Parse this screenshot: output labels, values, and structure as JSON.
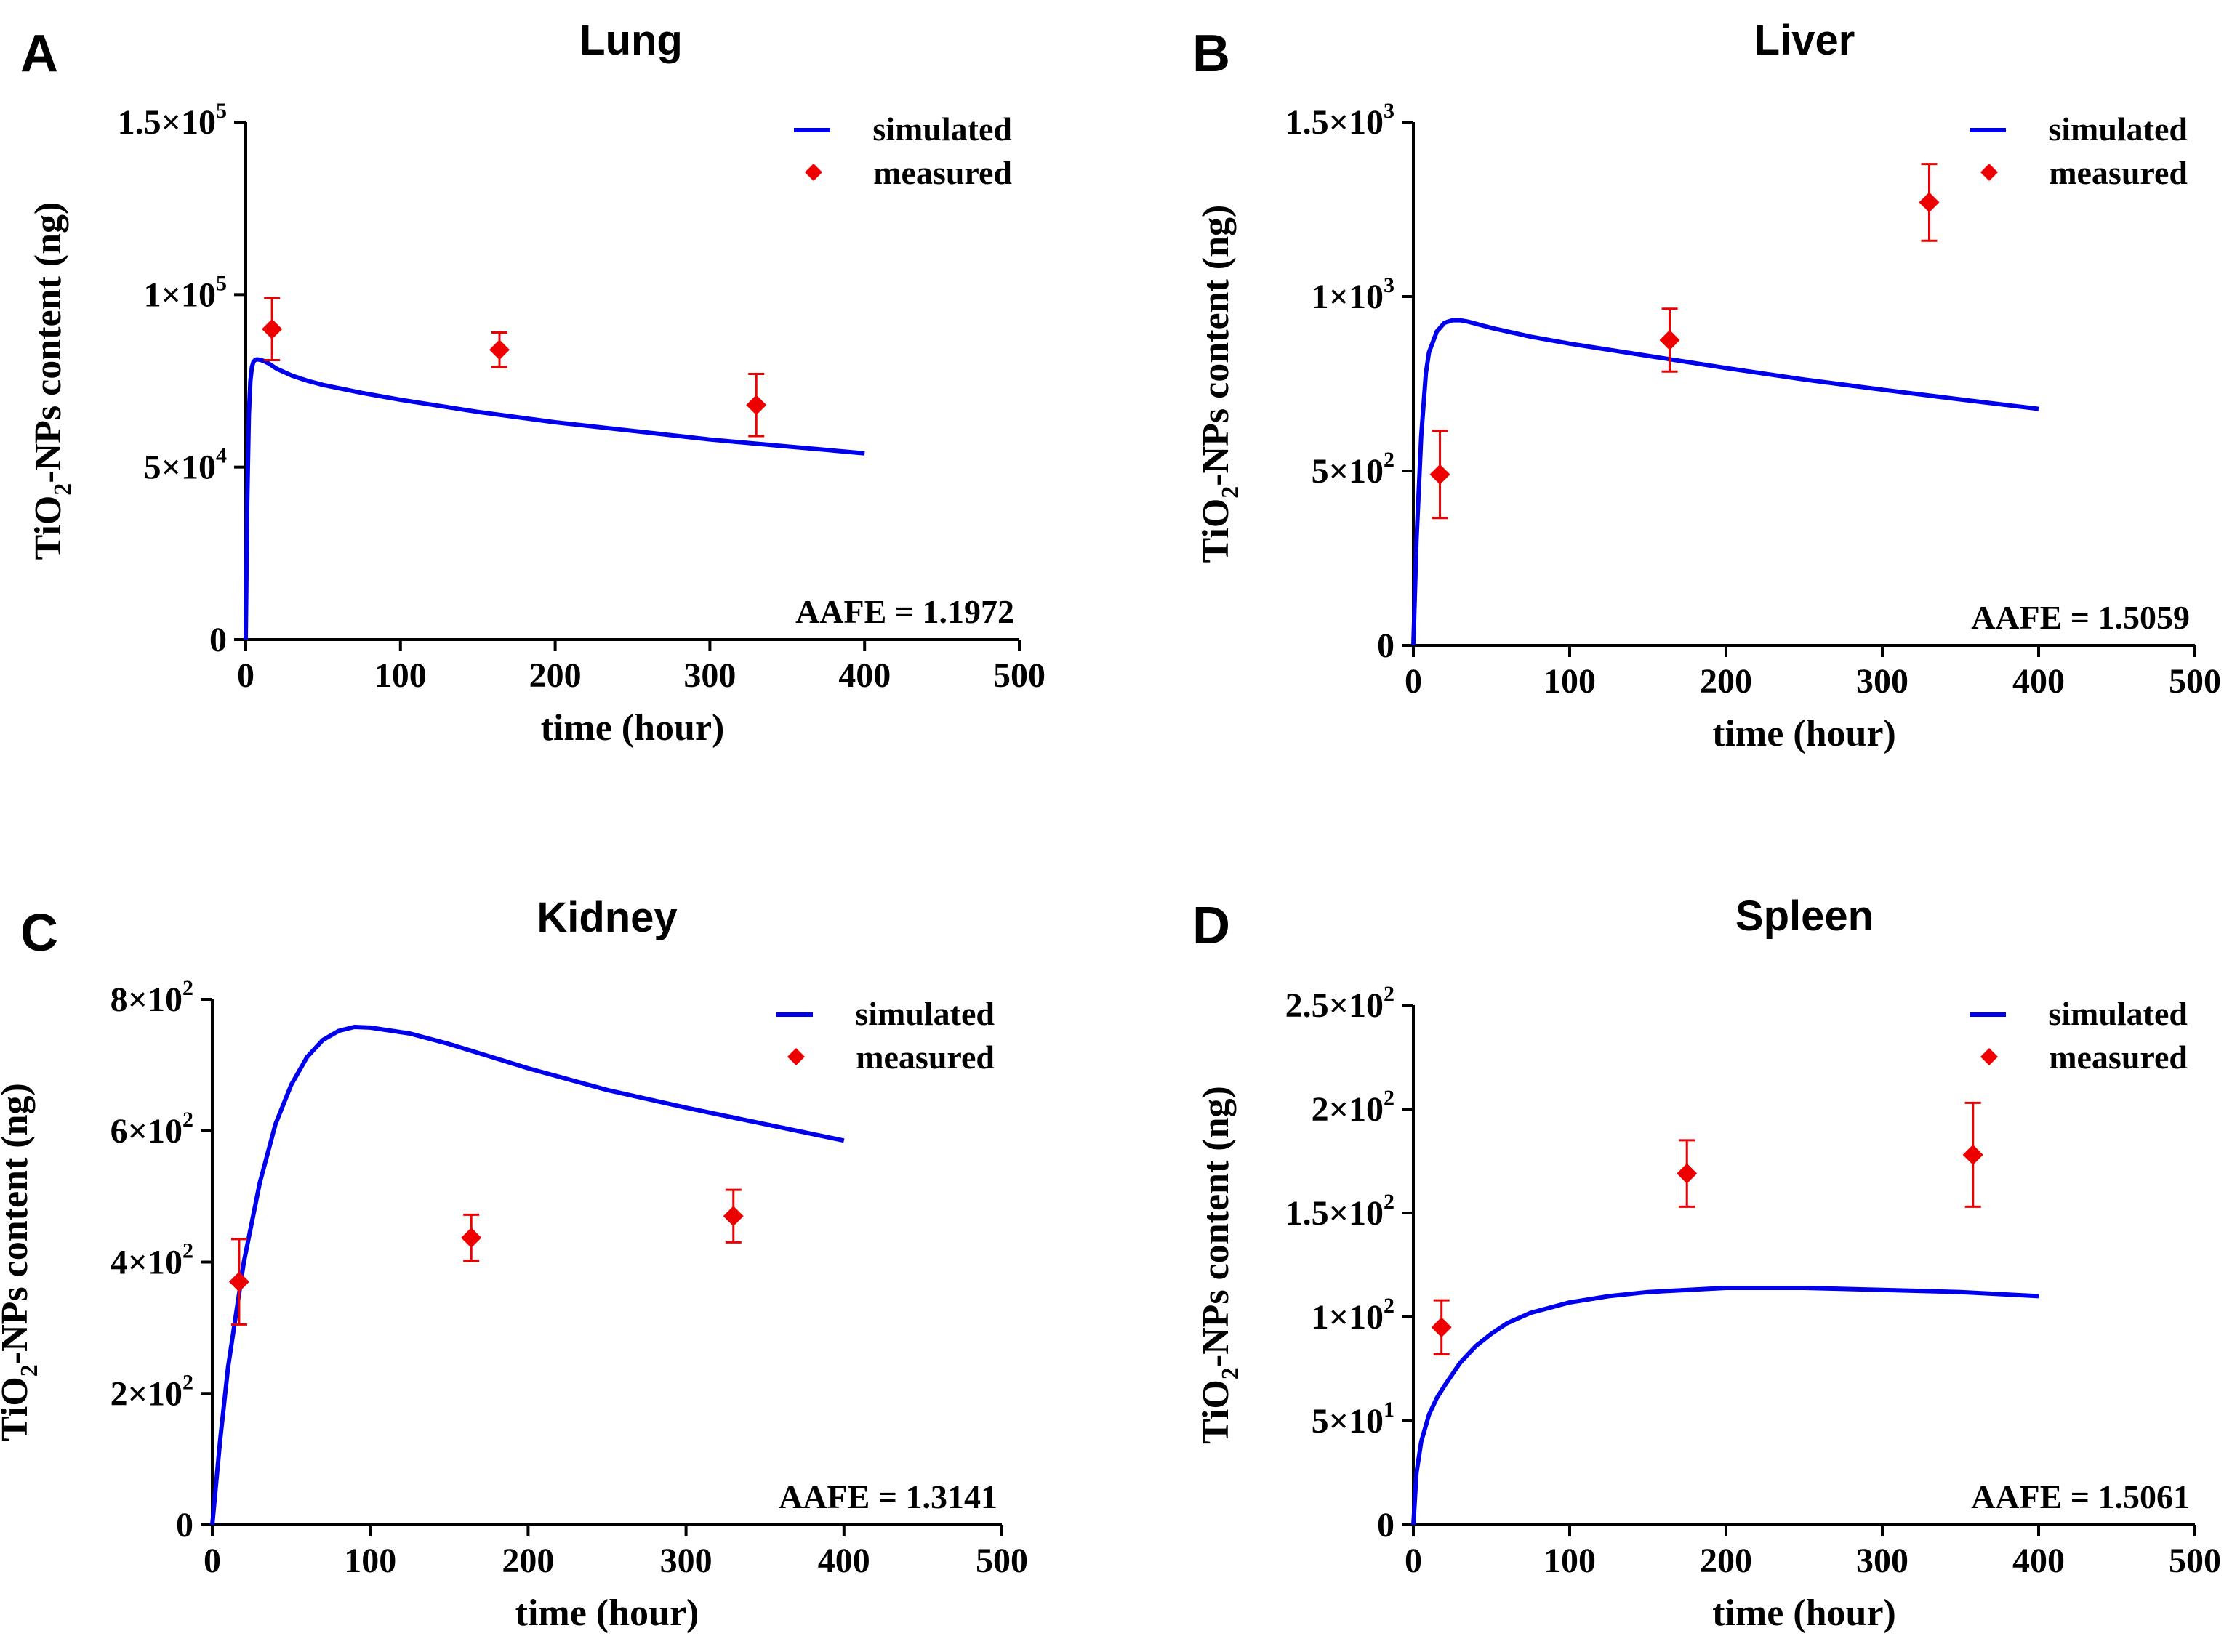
{
  "chart_data": [
    {
      "type": "line",
      "letter": "A",
      "title": "Lung",
      "xlabel": "time (hour)",
      "ylabel": "TiO2-NPs content (ng)",
      "xlim": [
        0,
        500
      ],
      "ylim": [
        0,
        150000
      ],
      "xticks": [
        0,
        100,
        200,
        300,
        400,
        500
      ],
      "yticks": [
        {
          "value": 0,
          "label": "0"
        },
        {
          "value": 50000,
          "mant": "5×10",
          "exp": "4"
        },
        {
          "value": 100000,
          "mant": "1×10",
          "exp": "5"
        },
        {
          "value": 150000,
          "mant": "1.5×10",
          "exp": "5"
        }
      ],
      "legend": [
        "simulated",
        "measured"
      ],
      "legend_position": "top-right",
      "annotation": "AAFE = 1.1972",
      "simulated": {
        "x": [
          0,
          1,
          2,
          3,
          4,
          5,
          6,
          7,
          8,
          10,
          12,
          15,
          20,
          30,
          40,
          50,
          75,
          100,
          150,
          200,
          250,
          300,
          350,
          400
        ],
        "y": [
          0,
          40000,
          65000,
          75000,
          79000,
          80500,
          81000,
          81200,
          81200,
          81000,
          80700,
          80000,
          78500,
          76500,
          75000,
          73800,
          71500,
          69500,
          66000,
          63000,
          60500,
          58000,
          56000,
          54000
        ]
      },
      "measured": [
        {
          "x": 17,
          "y": 90000,
          "err": 9000
        },
        {
          "x": 164,
          "y": 84000,
          "err": 5000
        },
        {
          "x": 330,
          "y": 68000,
          "err": 9000
        }
      ]
    },
    {
      "type": "line",
      "letter": "B",
      "title": "Liver",
      "xlabel": "time (hour)",
      "ylabel": "TiO2-NPs content (ng)",
      "xlim": [
        0,
        500
      ],
      "ylim": [
        0,
        1500
      ],
      "xticks": [
        0,
        100,
        200,
        300,
        400,
        500
      ],
      "yticks": [
        {
          "value": 0,
          "label": "0"
        },
        {
          "value": 500,
          "mant": "5×10",
          "exp": "2"
        },
        {
          "value": 1000,
          "mant": "1×10",
          "exp": "3"
        },
        {
          "value": 1500,
          "mant": "1.5×10",
          "exp": "3"
        }
      ],
      "legend": [
        "simulated",
        "measured"
      ],
      "legend_position": "top-right",
      "annotation": "AAFE = 1.5059",
      "simulated": {
        "x": [
          0,
          2,
          5,
          8,
          10,
          15,
          20,
          25,
          30,
          35,
          40,
          50,
          75,
          100,
          150,
          200,
          250,
          300,
          350,
          400
        ],
        "y": [
          0,
          300,
          600,
          780,
          840,
          900,
          925,
          932,
          932,
          928,
          922,
          910,
          885,
          865,
          830,
          795,
          762,
          733,
          705,
          678
        ]
      },
      "measured": [
        {
          "x": 17,
          "y": 490,
          "err": 125
        },
        {
          "x": 164,
          "y": 875,
          "err": 90
        },
        {
          "x": 330,
          "y": 1270,
          "err": 110
        }
      ]
    },
    {
      "type": "line",
      "letter": "C",
      "title": "Kidney",
      "xlabel": "time (hour)",
      "ylabel": "TiO2-NPs content (ng)",
      "xlim": [
        0,
        500
      ],
      "ylim": [
        0,
        800
      ],
      "xticks": [
        0,
        100,
        200,
        300,
        400,
        500
      ],
      "yticks": [
        {
          "value": 0,
          "label": "0"
        },
        {
          "value": 200,
          "mant": "2×10",
          "exp": "2"
        },
        {
          "value": 400,
          "mant": "4×10",
          "exp": "2"
        },
        {
          "value": 600,
          "mant": "6×10",
          "exp": "2"
        },
        {
          "value": 800,
          "mant": "8×10",
          "exp": "2"
        }
      ],
      "legend": [
        "simulated",
        "measured"
      ],
      "legend_position": "top-right",
      "annotation": "AAFE = 1.3141",
      "simulated": {
        "x": [
          0,
          5,
          10,
          20,
          30,
          40,
          50,
          60,
          70,
          80,
          90,
          100,
          125,
          150,
          200,
          250,
          300,
          350,
          400
        ],
        "y": [
          0,
          130,
          240,
          400,
          520,
          610,
          670,
          712,
          738,
          752,
          758,
          757,
          748,
          732,
          695,
          662,
          635,
          610,
          585
        ]
      },
      "measured": [
        {
          "x": 17,
          "y": 370,
          "err": 65
        },
        {
          "x": 164,
          "y": 437,
          "err": 35
        },
        {
          "x": 330,
          "y": 470,
          "err": 40
        }
      ]
    },
    {
      "type": "line",
      "letter": "D",
      "title": "Spleen",
      "xlabel": "time (hour)",
      "ylabel": "TiO2-NPs content (ng)",
      "xlim": [
        0,
        500
      ],
      "ylim": [
        0,
        250
      ],
      "xticks": [
        0,
        100,
        200,
        300,
        400,
        500
      ],
      "yticks": [
        {
          "value": 0,
          "label": "0"
        },
        {
          "value": 50,
          "mant": "5×10",
          "exp": "1"
        },
        {
          "value": 100,
          "mant": "1×10",
          "exp": "2"
        },
        {
          "value": 150,
          "mant": "1.5×10",
          "exp": "2"
        },
        {
          "value": 200,
          "mant": "2×10",
          "exp": "2"
        },
        {
          "value": 250,
          "mant": "2.5×10",
          "exp": "2"
        }
      ],
      "legend": [
        "simulated",
        "measured"
      ],
      "legend_position": "top-right",
      "annotation": "AAFE = 1.5061",
      "simulated": {
        "x": [
          0,
          2,
          5,
          10,
          15,
          20,
          30,
          40,
          50,
          60,
          75,
          100,
          125,
          150,
          200,
          250,
          300,
          350,
          400
        ],
        "y": [
          0,
          25,
          40,
          53,
          61,
          67,
          78,
          86,
          92,
          97,
          102,
          107,
          110,
          112,
          114,
          114,
          113,
          112,
          110
        ]
      },
      "measured": [
        {
          "x": 18,
          "y": 95,
          "err": 13
        },
        {
          "x": 175,
          "y": 169,
          "err": 16
        },
        {
          "x": 358,
          "y": 178,
          "err": 25
        }
      ]
    }
  ]
}
